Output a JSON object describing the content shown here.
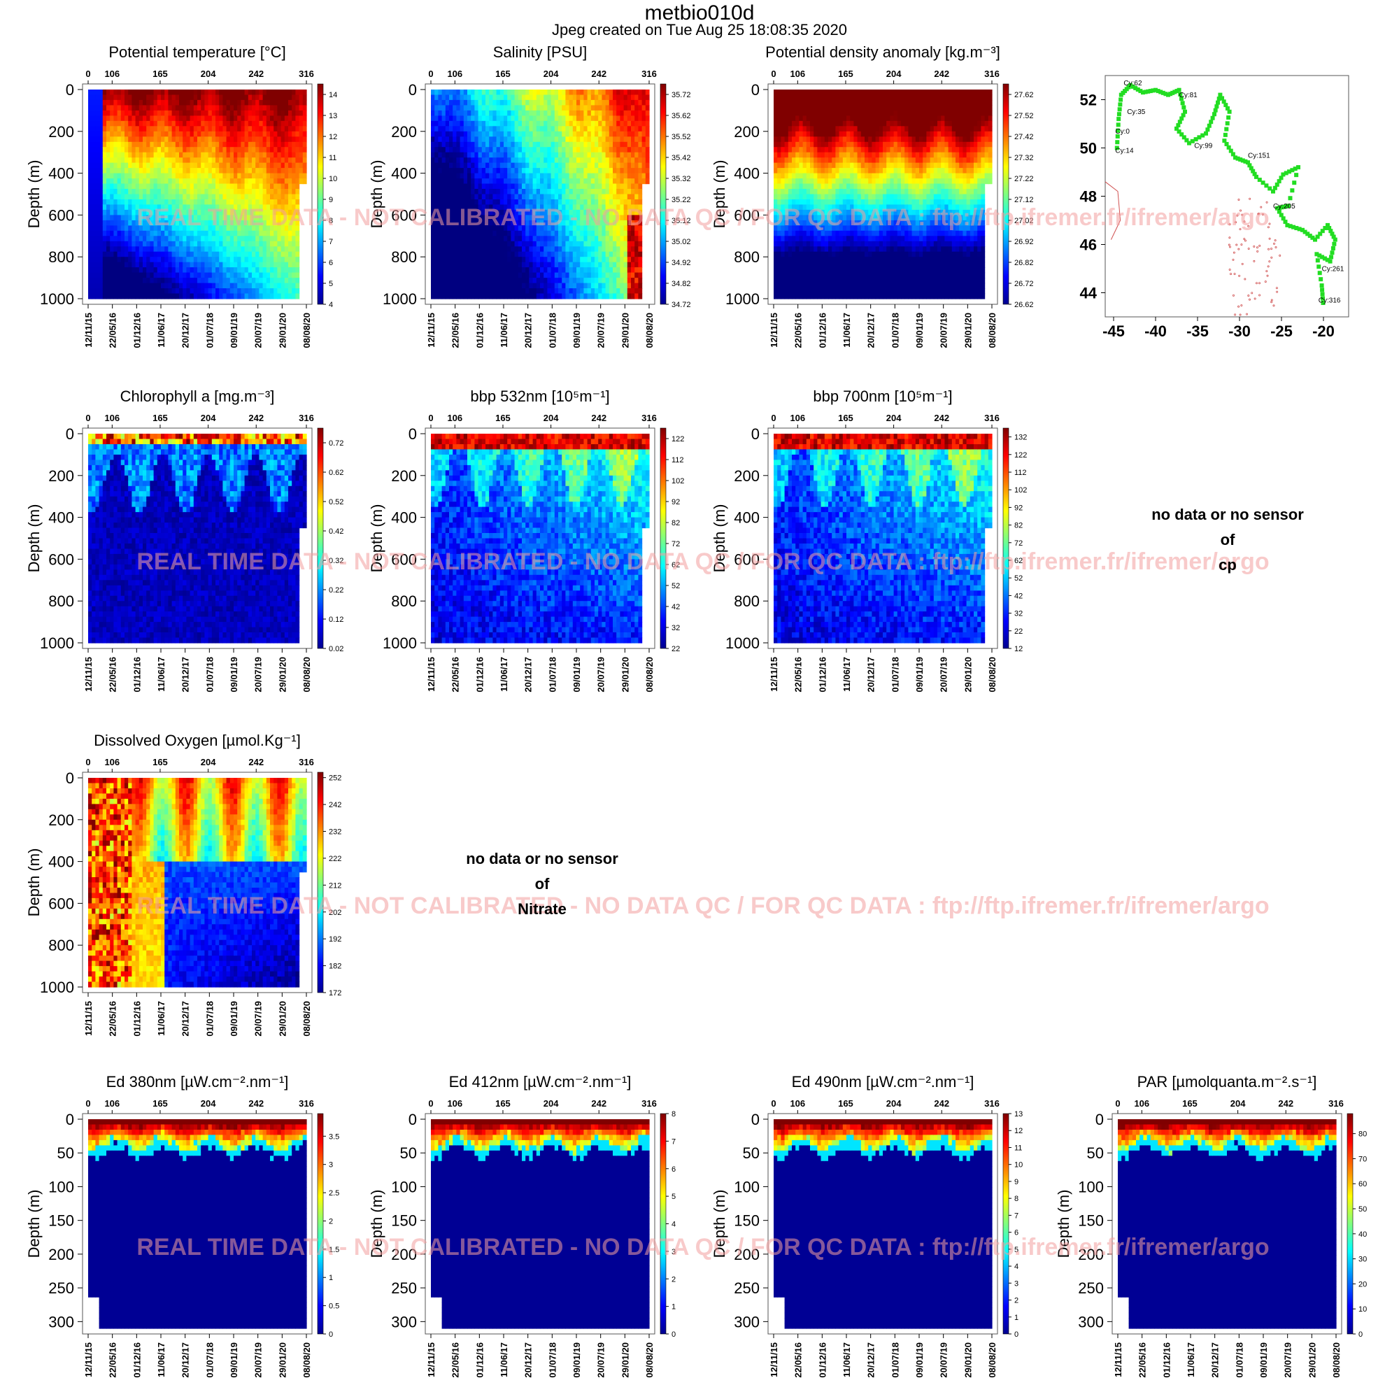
{
  "header": {
    "title": "metbio010d",
    "subtitle": "Jpeg created on  Tue Aug 25 18:08:35 2020"
  },
  "watermark": "REAL TIME DATA - NOT CALIBRATED - NO DATA QC   /  FOR QC DATA : ftp://ftp.ifremer.fr/ifremer/argo",
  "common": {
    "cycle_ticks": [
      "0",
      "106",
      "165",
      "204",
      "242",
      "316"
    ],
    "date_ticks": [
      "12/11/15",
      "22/05/16",
      "01/12/16",
      "11/06/17",
      "20/12/17",
      "01/07/18",
      "09/01/19",
      "20/07/19",
      "29/01/20",
      "08/08/20"
    ],
    "depth_label": "Depth (m)"
  },
  "no_data": [
    {
      "lines": [
        "no data or no sensor",
        "of",
        "cp"
      ]
    },
    {
      "lines": [
        "no data or no sensor",
        "of",
        "Nitrate"
      ]
    }
  ],
  "chart_data": [
    {
      "type": "heatmap",
      "title": "Potential temperature [°C]",
      "ylabel": "Depth (m)",
      "ylim": [
        0,
        1000
      ],
      "depth_ticks": [
        0,
        200,
        400,
        600,
        800,
        1000
      ],
      "colorbar": {
        "ticks": [
          "14",
          "13",
          "12",
          "11",
          "10",
          "9",
          "8",
          "7",
          "6",
          "5",
          "4"
        ],
        "range": [
          4,
          14.5
        ]
      }
    },
    {
      "type": "heatmap",
      "title": "Salinity [PSU]",
      "ylabel": "Depth (m)",
      "ylim": [
        0,
        1000
      ],
      "depth_ticks": [
        0,
        200,
        400,
        600,
        800,
        1000
      ],
      "colorbar": {
        "ticks": [
          "35.72",
          "35.62",
          "35.52",
          "35.42",
          "35.32",
          "35.22",
          "35.12",
          "35.02",
          "34.92",
          "34.82",
          "34.72"
        ],
        "range": [
          34.72,
          35.77
        ]
      }
    },
    {
      "type": "heatmap",
      "title": "Potential density anomaly [kg.m⁻³]",
      "ylabel": "Depth (m)",
      "ylim": [
        0,
        1000
      ],
      "depth_ticks": [
        0,
        200,
        400,
        600,
        800,
        1000
      ],
      "colorbar": {
        "ticks": [
          "27.62",
          "27.52",
          "27.42",
          "27.32",
          "27.22",
          "27.12",
          "27.02",
          "26.92",
          "26.82",
          "26.72",
          "26.62"
        ],
        "range": [
          26.62,
          27.67
        ]
      }
    },
    {
      "type": "scatter",
      "title": "",
      "xlim": [
        -46,
        -17
      ],
      "ylim": [
        43,
        53
      ],
      "xticks": [
        "-45",
        "-40",
        "-35",
        "-30",
        "-25",
        "-20"
      ],
      "yticks": [
        "44",
        "46",
        "48",
        "50",
        "52"
      ],
      "labels": [
        "Cy:62",
        "Cy:81",
        "Cy:35",
        "Cy:0",
        "Cy:14",
        "Cy:99",
        "Cy:151",
        "Cy:205",
        "Cy:261",
        "Cy:316"
      ],
      "track_color": "#22dd22",
      "coast_color": "#d05050"
    },
    {
      "type": "heatmap",
      "title": "Chlorophyll a [mg.m⁻³]",
      "ylabel": "Depth (m)",
      "ylim": [
        0,
        1000
      ],
      "depth_ticks": [
        0,
        200,
        400,
        600,
        800,
        1000
      ],
      "colorbar": {
        "ticks": [
          "0.72",
          "0.62",
          "0.52",
          "0.42",
          "0.32",
          "0.22",
          "0.12",
          "0.02"
        ],
        "range": [
          0.02,
          0.77
        ]
      }
    },
    {
      "type": "heatmap",
      "title": "bbp 532nm [10⁵m⁻¹]",
      "ylabel": "Depth (m)",
      "ylim": [
        0,
        1000
      ],
      "depth_ticks": [
        0,
        200,
        400,
        600,
        800,
        1000
      ],
      "colorbar": {
        "ticks": [
          "122",
          "112",
          "102",
          "92",
          "82",
          "72",
          "62",
          "52",
          "42",
          "32",
          "22"
        ],
        "range": [
          22,
          127
        ]
      }
    },
    {
      "type": "heatmap",
      "title": "bbp 700nm [10⁵m⁻¹]",
      "ylabel": "Depth (m)",
      "ylim": [
        0,
        1000
      ],
      "depth_ticks": [
        0,
        200,
        400,
        600,
        800,
        1000
      ],
      "colorbar": {
        "ticks": [
          "132",
          "122",
          "112",
          "102",
          "92",
          "82",
          "72",
          "62",
          "52",
          "42",
          "32",
          "22",
          "12"
        ],
        "range": [
          12,
          137
        ]
      }
    },
    {
      "type": "heatmap",
      "title": "Dissolved Oxygen [µmol.Kg⁻¹]",
      "ylabel": "Depth (m)",
      "ylim": [
        0,
        1000
      ],
      "depth_ticks": [
        0,
        200,
        400,
        600,
        800,
        1000
      ],
      "colorbar": {
        "ticks": [
          "252",
          "242",
          "232",
          "222",
          "212",
          "202",
          "192",
          "182",
          "172"
        ],
        "range": [
          172,
          254
        ]
      }
    },
    {
      "type": "heatmap",
      "title": "Ed 380nm [µW.cm⁻².nm⁻¹]",
      "ylabel": "Depth (m)",
      "ylim": [
        0,
        310
      ],
      "depth_ticks": [
        0,
        50,
        100,
        150,
        200,
        250,
        300
      ],
      "colorbar": {
        "ticks": [
          "3.5",
          "3",
          "2.5",
          "2",
          "1.5",
          "1",
          "0.5",
          "0"
        ],
        "range": [
          0,
          3.9
        ]
      }
    },
    {
      "type": "heatmap",
      "title": "Ed 412nm [µW.cm⁻².nm⁻¹]",
      "ylabel": "Depth (m)",
      "ylim": [
        0,
        310
      ],
      "depth_ticks": [
        0,
        50,
        100,
        150,
        200,
        250,
        300
      ],
      "colorbar": {
        "ticks": [
          "8",
          "7",
          "6",
          "5",
          "4",
          "3",
          "2",
          "1",
          "0"
        ],
        "range": [
          0,
          8
        ]
      }
    },
    {
      "type": "heatmap",
      "title": "Ed 490nm [µW.cm⁻².nm⁻¹]",
      "ylabel": "Depth (m)",
      "ylim": [
        0,
        310
      ],
      "depth_ticks": [
        0,
        50,
        100,
        150,
        200,
        250,
        300
      ],
      "colorbar": {
        "ticks": [
          "13",
          "12",
          "11",
          "10",
          "9",
          "8",
          "7",
          "6",
          "5",
          "4",
          "3",
          "2",
          "1",
          "0"
        ],
        "range": [
          0,
          13
        ]
      }
    },
    {
      "type": "heatmap",
      "title": "PAR [µmolquanta.m⁻².s⁻¹]",
      "ylabel": "Depth (m)",
      "ylim": [
        0,
        310
      ],
      "depth_ticks": [
        0,
        50,
        100,
        150,
        200,
        250,
        300
      ],
      "colorbar": {
        "ticks": [
          "80",
          "70",
          "60",
          "50",
          "40",
          "30",
          "20",
          "10",
          "0"
        ],
        "range": [
          0,
          88
        ]
      }
    }
  ]
}
